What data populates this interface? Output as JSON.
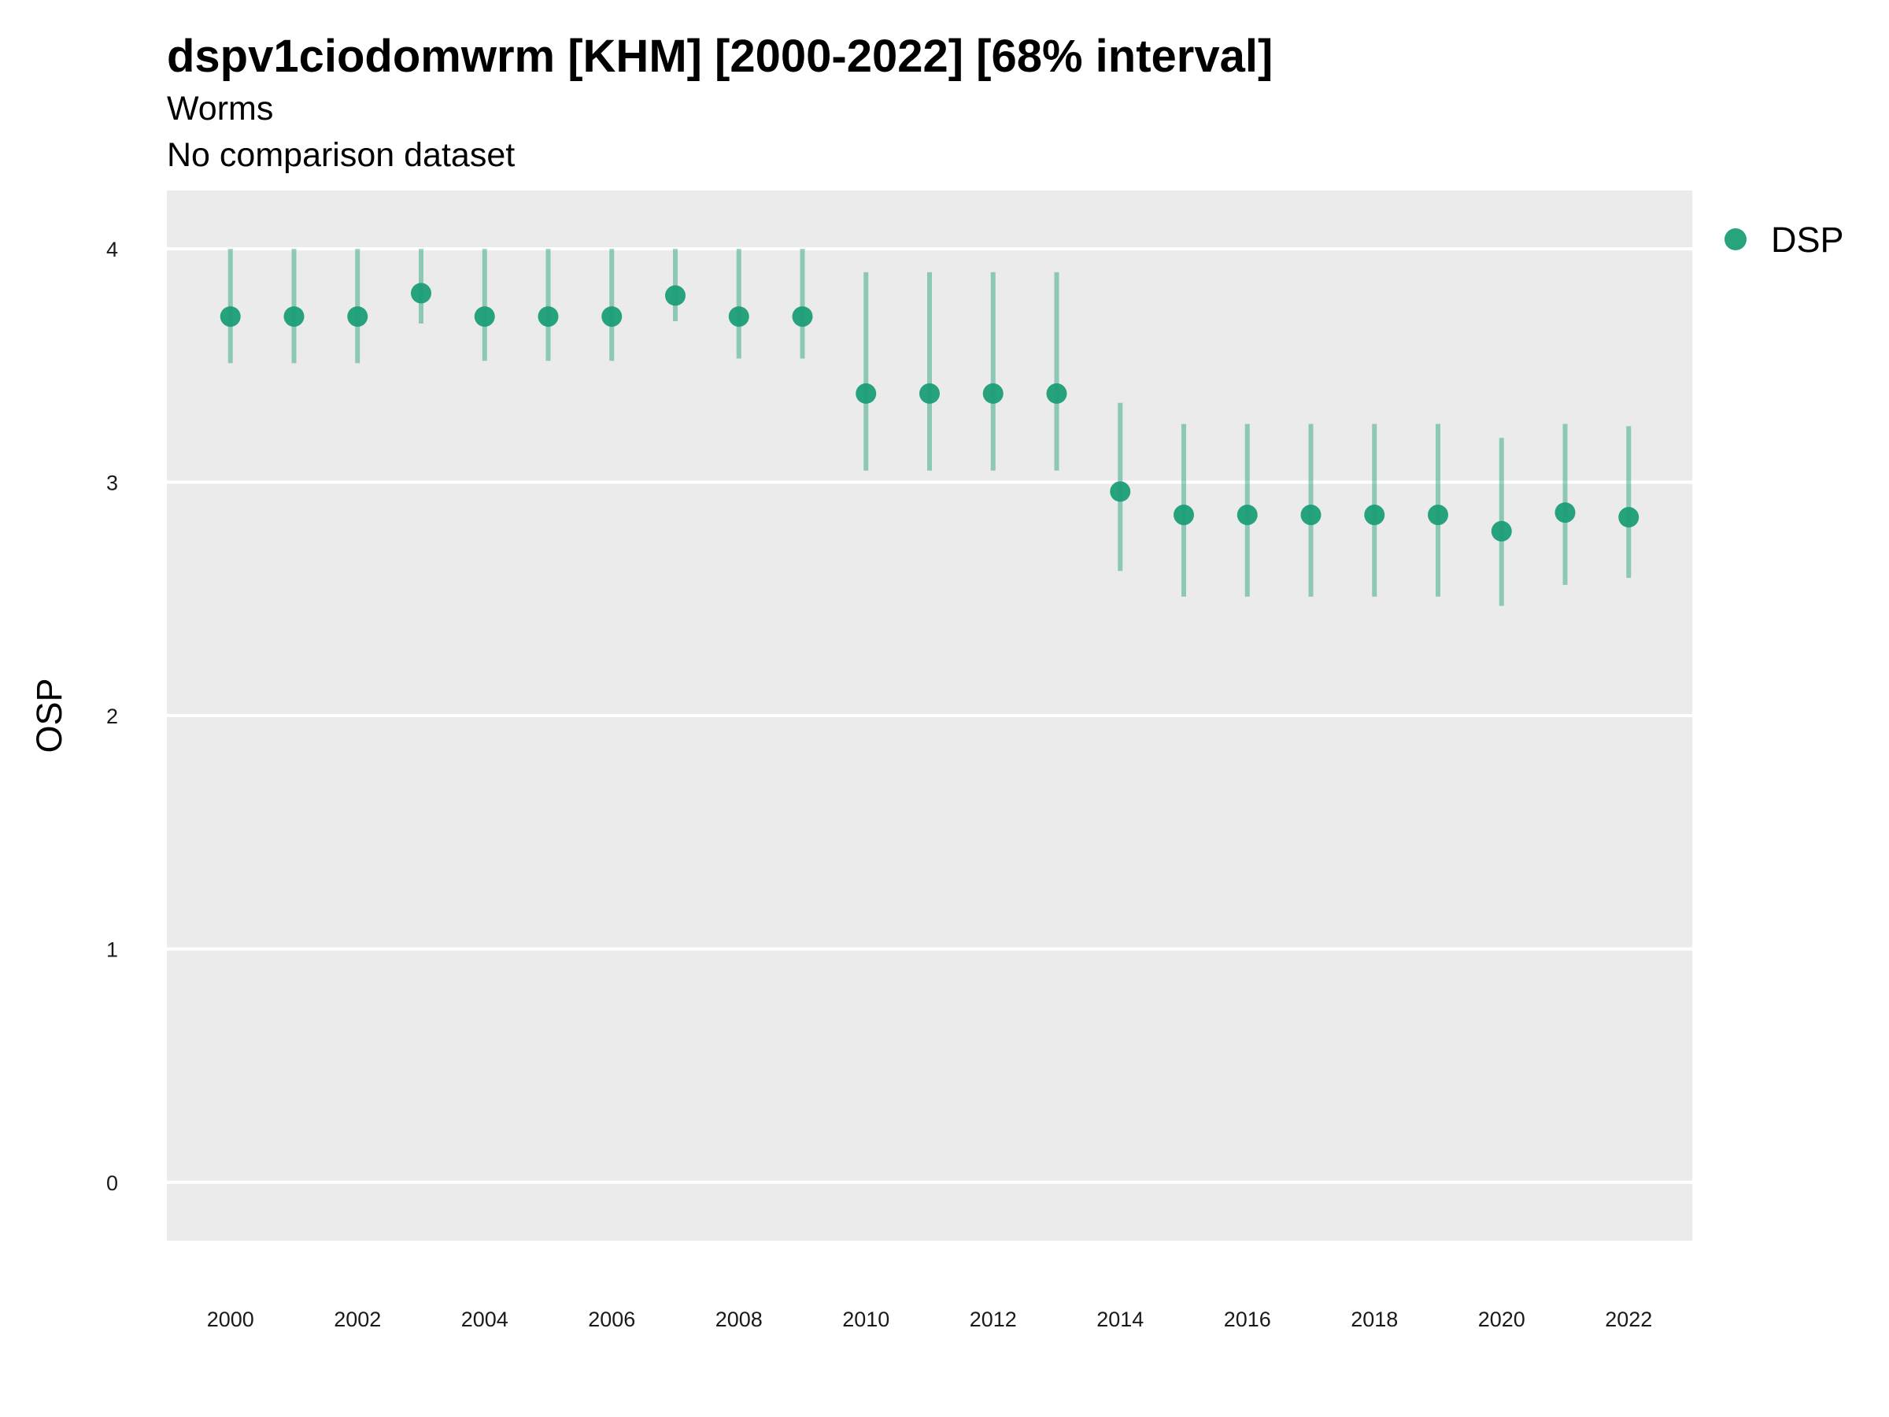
{
  "chart_data": {
    "type": "scatter",
    "title": "dspv1ciodomwrm [KHM] [2000-2022] [68% interval]",
    "subtitle": "Worms",
    "caption": "No comparison dataset",
    "xlabel": "",
    "ylabel": "OSP",
    "ylim": [
      -0.25,
      4.25
    ],
    "xlim": [
      1999,
      2023
    ],
    "x_ticks": [
      "2000",
      "2002",
      "2004",
      "2006",
      "2008",
      "2010",
      "2012",
      "2014",
      "2016",
      "2018",
      "2020",
      "2022"
    ],
    "y_ticks": [
      "0",
      "1",
      "2",
      "3",
      "4"
    ],
    "grid": true,
    "legend_position": "right",
    "series": [
      {
        "name": "DSP",
        "color": "#1b9e77",
        "x": [
          2000,
          2001,
          2002,
          2003,
          2004,
          2005,
          2006,
          2007,
          2008,
          2009,
          2010,
          2011,
          2012,
          2013,
          2014,
          2015,
          2016,
          2017,
          2018,
          2019,
          2020,
          2021,
          2022
        ],
        "y": [
          3.71,
          3.71,
          3.71,
          3.81,
          3.71,
          3.71,
          3.71,
          3.8,
          3.71,
          3.71,
          3.38,
          3.38,
          3.38,
          3.38,
          2.96,
          2.86,
          2.86,
          2.86,
          2.86,
          2.86,
          2.79,
          2.87,
          2.85
        ],
        "lower": [
          3.51,
          3.51,
          3.51,
          3.68,
          3.52,
          3.52,
          3.52,
          3.69,
          3.53,
          3.53,
          3.05,
          3.05,
          3.05,
          3.05,
          2.62,
          2.51,
          2.51,
          2.51,
          2.51,
          2.51,
          2.47,
          2.56,
          2.59
        ],
        "upper": [
          4.0,
          4.0,
          4.0,
          4.0,
          4.0,
          4.0,
          4.0,
          4.0,
          4.0,
          4.0,
          3.9,
          3.9,
          3.9,
          3.9,
          3.34,
          3.25,
          3.25,
          3.25,
          3.25,
          3.25,
          3.19,
          3.25,
          3.24
        ]
      }
    ]
  }
}
